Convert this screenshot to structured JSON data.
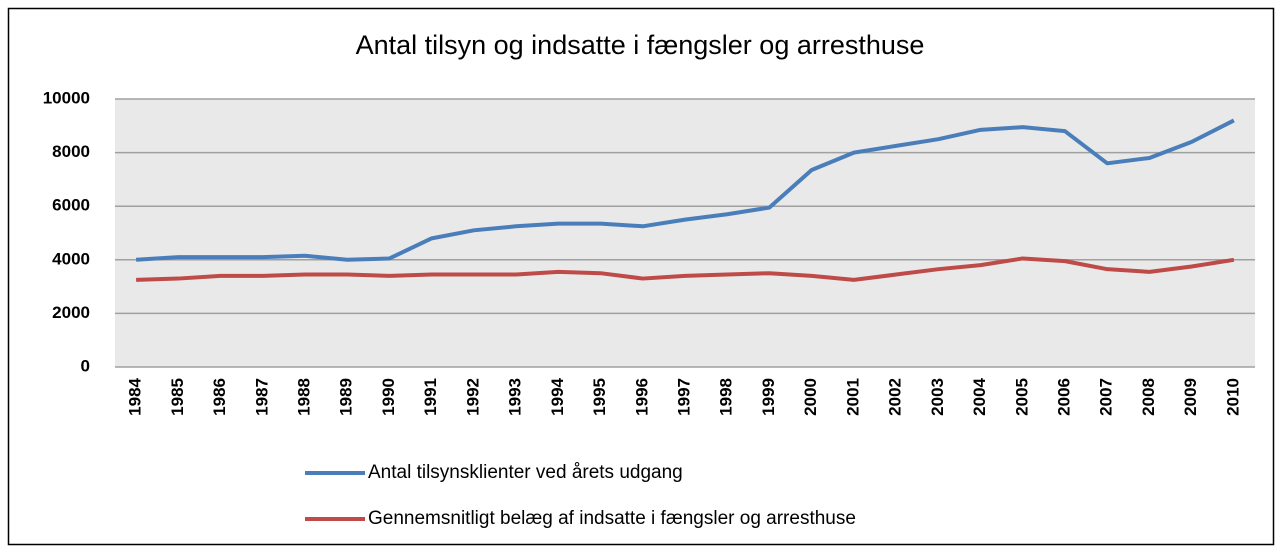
{
  "chart_data": {
    "type": "line",
    "title": "Antal tilsyn og indsatte i fængsler og arresthuse",
    "categories": [
      "1984",
      "1985",
      "1986",
      "1987",
      "1988",
      "1989",
      "1990",
      "1991",
      "1992",
      "1993",
      "1994",
      "1995",
      "1996",
      "1997",
      "1998",
      "1999",
      "2000",
      "2001",
      "2002",
      "2003",
      "2004",
      "2005",
      "2006",
      "2007",
      "2008",
      "2009",
      "2010"
    ],
    "series": [
      {
        "name": "Antal tilsynsklienter ved årets udgang",
        "color": "#4a7ebb",
        "values": [
          4000,
          4100,
          4100,
          4100,
          4150,
          4000,
          4050,
          4800,
          5100,
          5250,
          5350,
          5350,
          5250,
          5500,
          5700,
          5950,
          7350,
          8000,
          8250,
          8500,
          8850,
          8950,
          8800,
          7600,
          7800,
          8400,
          9200
        ]
      },
      {
        "name": "Gennemsnitligt belæg af indsatte i fængsler og arresthuse",
        "color": "#be4b48",
        "values": [
          3250,
          3300,
          3400,
          3400,
          3450,
          3450,
          3400,
          3450,
          3450,
          3450,
          3550,
          3500,
          3300,
          3400,
          3450,
          3500,
          3400,
          3250,
          3450,
          3650,
          3800,
          4050,
          3950,
          3650,
          3550,
          3750,
          4000
        ]
      }
    ],
    "ylim": [
      0,
      10000
    ],
    "yticks": [
      0,
      2000,
      4000,
      6000,
      8000,
      10000
    ],
    "grid": true,
    "legend": "bottom"
  }
}
